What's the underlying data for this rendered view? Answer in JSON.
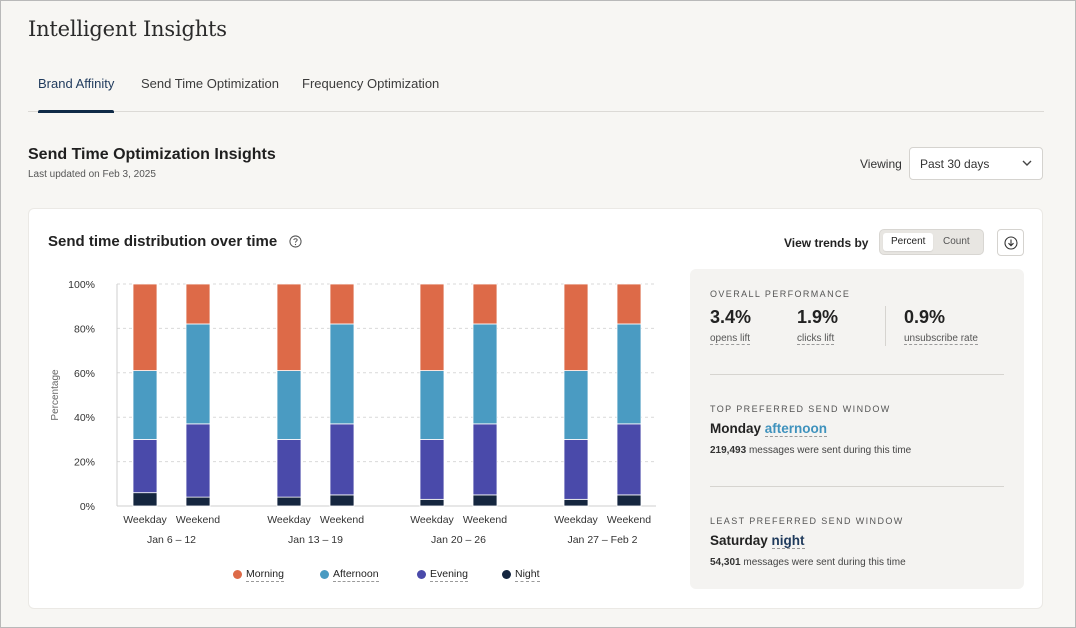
{
  "app": {
    "title": "Intelligent Insights"
  },
  "tabs": [
    {
      "label": "Brand Affinity",
      "active": true
    },
    {
      "label": "Send Time Optimization",
      "active": false
    },
    {
      "label": "Frequency Optimization",
      "active": false
    }
  ],
  "section": {
    "title": "Send Time Optimization Insights",
    "updated": "Last updated on Feb 3, 2025",
    "viewing_label": "Viewing",
    "viewing_value": "Past 30 days"
  },
  "card": {
    "title": "Send time distribution over time",
    "help_icon": "question-circle-icon",
    "trends_label": "View trends by",
    "toggle": {
      "percent": "Percent",
      "count": "Count",
      "selected": "Percent"
    },
    "download_icon": "download-icon"
  },
  "colors": {
    "Morning": "#dd6a48",
    "Afternoon": "#4a9bc2",
    "Evening": "#4a4aaa",
    "Night": "#15263f"
  },
  "chart_data": {
    "type": "bar",
    "stacked": true,
    "ylabel": "Percentage",
    "yticks": [
      "100%",
      "80%",
      "60%",
      "40%",
      "20%",
      "0%"
    ],
    "ylim": [
      0,
      100
    ],
    "groups": [
      "Jan 6 – 12",
      "Jan 13 – 19",
      "Jan 20 – 26",
      "Jan 27 – Feb 2"
    ],
    "categories": [
      "Weekday",
      "Weekend",
      "Weekday",
      "Weekend",
      "Weekday",
      "Weekend",
      "Weekday",
      "Weekend"
    ],
    "series": [
      {
        "name": "Night",
        "values": [
          6,
          4,
          4,
          5,
          3,
          5,
          3,
          5
        ]
      },
      {
        "name": "Evening",
        "values": [
          24,
          33,
          26,
          32,
          27,
          32,
          27,
          32
        ]
      },
      {
        "name": "Afternoon",
        "values": [
          31,
          45,
          31,
          45,
          31,
          45,
          31,
          45
        ]
      },
      {
        "name": "Morning",
        "values": [
          39,
          18,
          39,
          18,
          39,
          18,
          39,
          18
        ]
      }
    ],
    "legend": [
      "Morning",
      "Afternoon",
      "Evening",
      "Night"
    ],
    "grid": true
  },
  "overall": {
    "kicker": "OVERALL PERFORMANCE",
    "metrics": [
      {
        "value": "3.4%",
        "label": "opens lift"
      },
      {
        "value": "1.9%",
        "label": "clicks lift"
      },
      {
        "value": "0.9%",
        "label": "unsubscribe rate"
      }
    ]
  },
  "top_window": {
    "kicker": "TOP PREFERRED SEND WINDOW",
    "day": "Monday",
    "period": "afternoon",
    "count": "219,493",
    "suffix": "messages were sent during this time"
  },
  "least_window": {
    "kicker": "LEAST PREFERRED SEND WINDOW",
    "day": "Saturday",
    "period": "night",
    "count": "54,301",
    "suffix": "messages were sent during this time"
  }
}
